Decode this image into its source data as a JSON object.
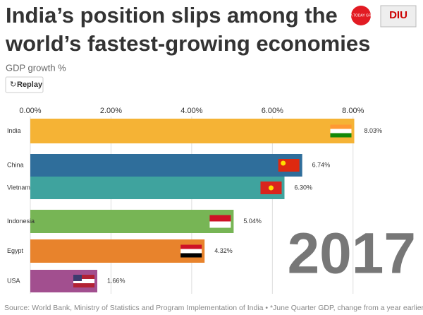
{
  "chart_data": {
    "type": "bar",
    "orientation": "horizontal",
    "title": [
      "India’s position slips among the",
      "world’s fastest-growing economies"
    ],
    "subtitle": "GDP growth %",
    "button": "Replay",
    "logos": [
      "INDIA TODAY GROUP",
      "DIU"
    ],
    "annotation": "2017",
    "source": "Source: World Bank, Ministry of Statistics and Program Implementation of India • *June Quarter GDP, change from a year earlier",
    "categories": [
      "India",
      "China",
      "Vietnam",
      "Indonesia",
      "Egypt",
      "USA"
    ],
    "values": [
      8.03,
      6.74,
      6.3,
      5.04,
      4.32,
      1.66
    ],
    "value_labels": [
      "8.03%",
      "6.74%",
      "6.30%",
      "5.04%",
      "4.32%",
      "1.66%"
    ],
    "colors": [
      "#f5b335",
      "#2f6e9b",
      "#3fa39e",
      "#77b555",
      "#e8832c",
      "#a24f8f"
    ],
    "xlim": [
      0,
      9
    ],
    "xticks": [
      {
        "value": 0,
        "label": "0.00%"
      },
      {
        "value": 2,
        "label": "2.00%"
      },
      {
        "value": 4,
        "label": "4.00%"
      },
      {
        "value": 6,
        "label": "6.00%"
      },
      {
        "value": 8,
        "label": "8.00%"
      }
    ],
    "grid": true
  }
}
